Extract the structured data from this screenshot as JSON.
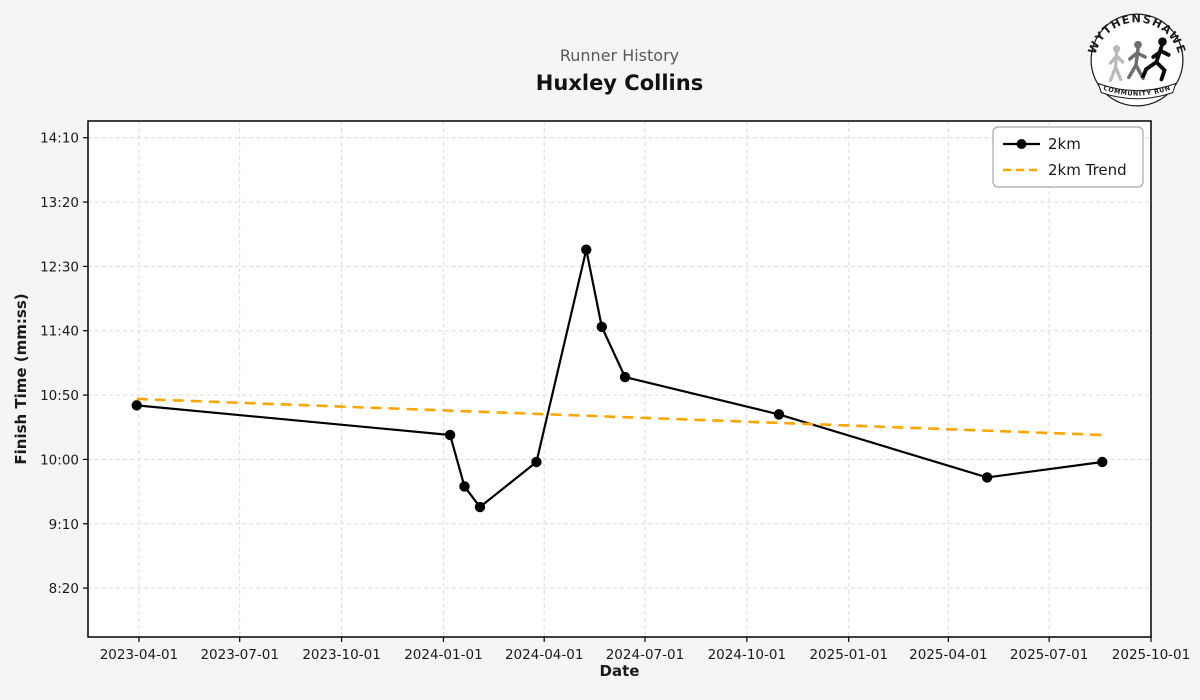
{
  "header": {
    "subtitle": "Runner History",
    "title": "Huxley Collins"
  },
  "logo": {
    "top_text": "WYTHENSHAWE",
    "bottom_text": "COMMUNITY RUN"
  },
  "chart_data": {
    "type": "line",
    "title": "Huxley Collins",
    "subtitle": "Runner History",
    "xlabel": "Date",
    "ylabel": "Finish Time (mm:ss)",
    "x_ticks": [
      "2023-04-01",
      "2023-07-01",
      "2023-10-01",
      "2024-01-01",
      "2024-04-01",
      "2024-07-01",
      "2024-10-01",
      "2025-01-01",
      "2025-04-01",
      "2025-07-01",
      "2025-10-01"
    ],
    "y_ticks": [
      "14:10",
      "13:20",
      "12:30",
      "11:40",
      "10:50",
      "10:00",
      "9:10",
      "8:20"
    ],
    "x_range": [
      "2023-02-14",
      "2025-10-01"
    ],
    "y_range_seconds": [
      462,
      863
    ],
    "grid": true,
    "legend_position": "upper right",
    "colors": {
      "series_2km": "#000000",
      "trend": "#FFA500",
      "grid": "#dcdcdc",
      "plot_bg": "#ffffff",
      "page_bg": "#f5f5f5",
      "frame": "#000000"
    },
    "series": [
      {
        "name": "2km",
        "style": "solid",
        "marker": "circle",
        "color": "#000000",
        "points": [
          {
            "date": "2023-03-30",
            "time": "10:42"
          },
          {
            "date": "2024-01-07",
            "time": "10:19"
          },
          {
            "date": "2024-01-20",
            "time": "9:39"
          },
          {
            "date": "2024-02-03",
            "time": "9:23"
          },
          {
            "date": "2024-03-25",
            "time": "9:58"
          },
          {
            "date": "2024-05-09",
            "time": "12:43"
          },
          {
            "date": "2024-05-23",
            "time": "11:43"
          },
          {
            "date": "2024-06-13",
            "time": "11:04"
          },
          {
            "date": "2024-10-30",
            "time": "10:35"
          },
          {
            "date": "2025-05-06",
            "time": "9:46"
          },
          {
            "date": "2025-08-18",
            "time": "9:58"
          }
        ]
      },
      {
        "name": "2km Trend",
        "style": "dashed",
        "marker": "none",
        "color": "#FFA500",
        "points": [
          {
            "date": "2023-03-30",
            "time": "10:47"
          },
          {
            "date": "2025-08-18",
            "time": "10:19"
          }
        ]
      }
    ]
  }
}
